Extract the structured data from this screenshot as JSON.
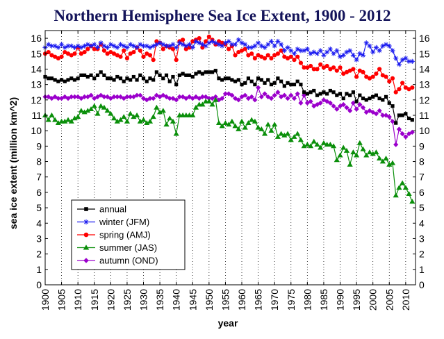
{
  "chart_data": {
    "type": "line",
    "title": "Northern Hemisphere Sea Ice Extent, 1900 - 2012",
    "xlabel": "year",
    "ylabel": "sea ice extent (million km^2)",
    "xlim": [
      1900,
      2013
    ],
    "ylim": [
      0,
      16.5
    ],
    "grid": "vertical dotted lines every 5 years",
    "legend_position": "lower-left",
    "x_ticks": [
      1900,
      1905,
      1910,
      1915,
      1920,
      1925,
      1930,
      1935,
      1940,
      1945,
      1950,
      1955,
      1960,
      1965,
      1970,
      1975,
      1980,
      1985,
      1990,
      1995,
      2000,
      2005,
      2010
    ],
    "y_ticks": [
      0,
      1,
      2,
      3,
      4,
      5,
      6,
      7,
      8,
      9,
      10,
      11,
      12,
      13,
      14,
      15,
      16
    ],
    "years": [
      1900,
      1901,
      1902,
      1903,
      1904,
      1905,
      1906,
      1907,
      1908,
      1909,
      1910,
      1911,
      1912,
      1913,
      1914,
      1915,
      1916,
      1917,
      1918,
      1919,
      1920,
      1921,
      1922,
      1923,
      1924,
      1925,
      1926,
      1927,
      1928,
      1929,
      1930,
      1931,
      1932,
      1933,
      1934,
      1935,
      1936,
      1937,
      1938,
      1939,
      1940,
      1941,
      1942,
      1943,
      1944,
      1945,
      1946,
      1947,
      1948,
      1949,
      1950,
      1951,
      1952,
      1953,
      1954,
      1955,
      1956,
      1957,
      1958,
      1959,
      1960,
      1961,
      1962,
      1963,
      1964,
      1965,
      1966,
      1967,
      1968,
      1969,
      1970,
      1971,
      1972,
      1973,
      1974,
      1975,
      1976,
      1977,
      1978,
      1979,
      1980,
      1981,
      1982,
      1983,
      1984,
      1985,
      1986,
      1987,
      1988,
      1989,
      1990,
      1991,
      1992,
      1993,
      1994,
      1995,
      1996,
      1997,
      1998,
      1999,
      2000,
      2001,
      2002,
      2003,
      2004,
      2005,
      2006,
      2007,
      2008,
      2009,
      2010,
      2011,
      2012
    ],
    "series": [
      {
        "name": "annual",
        "color": "#000000",
        "marker": "square",
        "values": [
          13.5,
          13.4,
          13.4,
          13.3,
          13.2,
          13.3,
          13.2,
          13.3,
          13.4,
          13.3,
          13.4,
          13.6,
          13.6,
          13.5,
          13.6,
          13.4,
          13.6,
          13.8,
          13.6,
          13.4,
          13.4,
          13.3,
          13.5,
          13.4,
          13.2,
          13.4,
          13.3,
          13.5,
          13.3,
          13.6,
          13.4,
          13.2,
          13.4,
          13.3,
          13.8,
          13.6,
          13.4,
          13.6,
          13.2,
          13.5,
          13.0,
          13.6,
          13.7,
          13.6,
          13.6,
          13.5,
          13.7,
          13.8,
          13.7,
          13.8,
          13.8,
          13.8,
          13.9,
          13.4,
          13.3,
          13.4,
          13.4,
          13.3,
          13.2,
          13.3,
          13.0,
          13.1,
          13.4,
          13.2,
          13.0,
          13.4,
          13.3,
          13.1,
          13.3,
          13.0,
          13.1,
          13.4,
          13.2,
          12.9,
          13.1,
          13.0,
          13.0,
          13.2,
          13.0,
          12.5,
          12.4,
          12.5,
          12.6,
          12.3,
          12.4,
          12.5,
          12.4,
          12.6,
          12.5,
          12.3,
          12.4,
          12.1,
          12.4,
          12.3,
          12.5,
          11.9,
          12.3,
          12.1,
          12.0,
          12.1,
          12.2,
          12.3,
          12.1,
          12.0,
          12.2,
          11.8,
          11.6,
          10.5,
          11.0,
          11.0,
          11.1,
          10.8,
          10.7
        ]
      },
      {
        "name": "winter (JFM)",
        "color": "#1b1bf0",
        "marker": "star",
        "values": [
          15.4,
          15.6,
          15.5,
          15.5,
          15.4,
          15.6,
          15.4,
          15.5,
          15.5,
          15.4,
          15.5,
          15.4,
          15.5,
          15.6,
          15.5,
          15.6,
          15.4,
          15.7,
          15.5,
          15.4,
          15.6,
          15.5,
          15.4,
          15.6,
          15.5,
          15.4,
          15.6,
          15.5,
          15.4,
          15.6,
          15.5,
          15.5,
          15.4,
          15.5,
          15.6,
          15.7,
          15.6,
          15.5,
          15.5,
          15.6,
          15.4,
          15.7,
          15.6,
          15.5,
          15.6,
          15.4,
          15.8,
          15.7,
          15.6,
          15.5,
          15.7,
          15.8,
          15.7,
          15.6,
          15.5,
          15.7,
          15.8,
          15.6,
          15.6,
          15.9,
          15.7,
          15.6,
          15.4,
          15.4,
          15.5,
          15.7,
          15.5,
          15.4,
          15.6,
          15.8,
          15.5,
          15.8,
          15.6,
          15.2,
          15.4,
          15.2,
          15.0,
          15.3,
          15.2,
          15.2,
          15.3,
          15.0,
          15.1,
          15.0,
          15.2,
          14.9,
          15.1,
          15.3,
          15.0,
          15.2,
          14.8,
          14.9,
          15.1,
          15.2,
          14.9,
          14.6,
          15.0,
          14.9,
          15.7,
          15.5,
          15.1,
          15.4,
          15.2,
          15.5,
          15.6,
          15.5,
          15.2,
          14.7,
          14.3,
          14.6,
          14.7,
          14.5,
          14.5
        ]
      },
      {
        "name": "spring (AMJ)",
        "color": "#ff0000",
        "marker": "circle",
        "values": [
          15.0,
          15.1,
          14.9,
          14.8,
          14.7,
          14.8,
          15.1,
          15.0,
          14.9,
          15.0,
          15.4,
          15.0,
          15.1,
          15.3,
          15.5,
          15.3,
          15.3,
          15.6,
          15.2,
          15.0,
          15.1,
          15.0,
          14.9,
          14.8,
          15.2,
          14.7,
          15.0,
          15.1,
          15.4,
          15.2,
          14.8,
          15.0,
          14.9,
          14.6,
          15.8,
          15.7,
          15.3,
          15.5,
          15.4,
          15.3,
          14.6,
          15.8,
          15.9,
          15.3,
          15.4,
          15.8,
          15.9,
          16.0,
          15.4,
          15.8,
          16.1,
          15.9,
          15.6,
          15.8,
          15.7,
          15.6,
          15.3,
          15.5,
          14.9,
          15.1,
          15.2,
          15.3,
          14.9,
          15.0,
          14.7,
          14.9,
          14.8,
          14.7,
          14.9,
          14.7,
          14.9,
          15.0,
          15.2,
          14.8,
          14.7,
          14.8,
          14.6,
          14.8,
          14.4,
          14.1,
          14.1,
          14.2,
          14.0,
          14.0,
          14.3,
          14.1,
          14.2,
          14.0,
          14.1,
          13.9,
          14.1,
          13.7,
          13.8,
          13.9,
          14.0,
          13.5,
          13.9,
          13.8,
          13.5,
          13.4,
          13.5,
          13.7,
          14.0,
          13.6,
          13.5,
          13.2,
          13.4,
          12.5,
          12.7,
          13.1,
          12.8,
          12.7,
          12.8
        ]
      },
      {
        "name": "summer (JAS)",
        "color": "#0a8f0a",
        "marker": "triangle",
        "values": [
          11.0,
          10.7,
          11.0,
          10.7,
          10.5,
          10.6,
          10.6,
          10.7,
          10.6,
          10.8,
          10.9,
          11.3,
          11.2,
          11.3,
          11.4,
          11.6,
          11.1,
          11.6,
          11.5,
          11.3,
          11.1,
          10.8,
          10.6,
          10.7,
          10.9,
          10.6,
          11.1,
          10.9,
          11.0,
          10.6,
          10.7,
          10.5,
          10.6,
          10.9,
          11.5,
          11.2,
          11.3,
          10.4,
          10.8,
          10.6,
          9.8,
          11.0,
          11.0,
          11.0,
          11.0,
          11.0,
          11.5,
          11.7,
          11.7,
          11.9,
          11.9,
          11.7,
          12.0,
          10.5,
          10.3,
          10.5,
          10.4,
          10.6,
          10.3,
          10.1,
          10.6,
          10.2,
          10.5,
          10.7,
          10.6,
          10.2,
          10.1,
          9.8,
          10.4,
          10.0,
          10.4,
          9.6,
          9.8,
          9.7,
          9.8,
          9.4,
          9.6,
          9.8,
          9.4,
          9.0,
          9.1,
          9.0,
          9.3,
          9.1,
          8.9,
          9.2,
          9.1,
          9.1,
          9.0,
          8.1,
          8.4,
          8.9,
          8.7,
          7.8,
          8.6,
          8.4,
          9.2,
          8.8,
          8.4,
          8.6,
          8.5,
          8.6,
          8.2,
          8.0,
          8.2,
          7.8,
          7.9,
          5.8,
          6.3,
          6.6,
          6.3,
          5.9,
          5.4
        ]
      },
      {
        "name": "autumn (OND)",
        "color": "#9b00cc",
        "marker": "diamond",
        "values": [
          12.2,
          12.2,
          12.1,
          12.2,
          12.1,
          12.1,
          12.2,
          12.1,
          12.2,
          12.2,
          12.2,
          12.1,
          12.2,
          12.2,
          12.3,
          12.1,
          12.2,
          12.3,
          12.2,
          12.2,
          12.1,
          12.2,
          12.2,
          12.2,
          12.1,
          12.2,
          12.2,
          12.2,
          12.3,
          12.3,
          12.1,
          12.0,
          12.1,
          12.1,
          12.3,
          12.2,
          12.3,
          12.2,
          12.1,
          12.1,
          12.0,
          12.2,
          12.2,
          12.1,
          12.2,
          12.1,
          12.2,
          12.1,
          12.2,
          12.2,
          12.1,
          12.1,
          12.2,
          12.0,
          12.1,
          12.4,
          12.4,
          12.3,
          12.1,
          12.0,
          12.2,
          12.3,
          12.1,
          12.2,
          12.0,
          12.8,
          12.2,
          12.4,
          12.2,
          12.1,
          12.3,
          12.5,
          12.2,
          12.3,
          12.1,
          12.3,
          12.1,
          12.4,
          11.8,
          12.3,
          11.8,
          11.9,
          11.6,
          11.7,
          11.8,
          12.0,
          11.9,
          11.8,
          11.6,
          11.4,
          11.6,
          11.7,
          11.5,
          11.3,
          11.8,
          11.4,
          11.7,
          11.5,
          11.2,
          11.3,
          11.2,
          11.1,
          11.3,
          11.0,
          11.0,
          10.9,
          10.6,
          9.1,
          10.1,
          9.8,
          9.6,
          9.8,
          9.9
        ]
      }
    ]
  }
}
